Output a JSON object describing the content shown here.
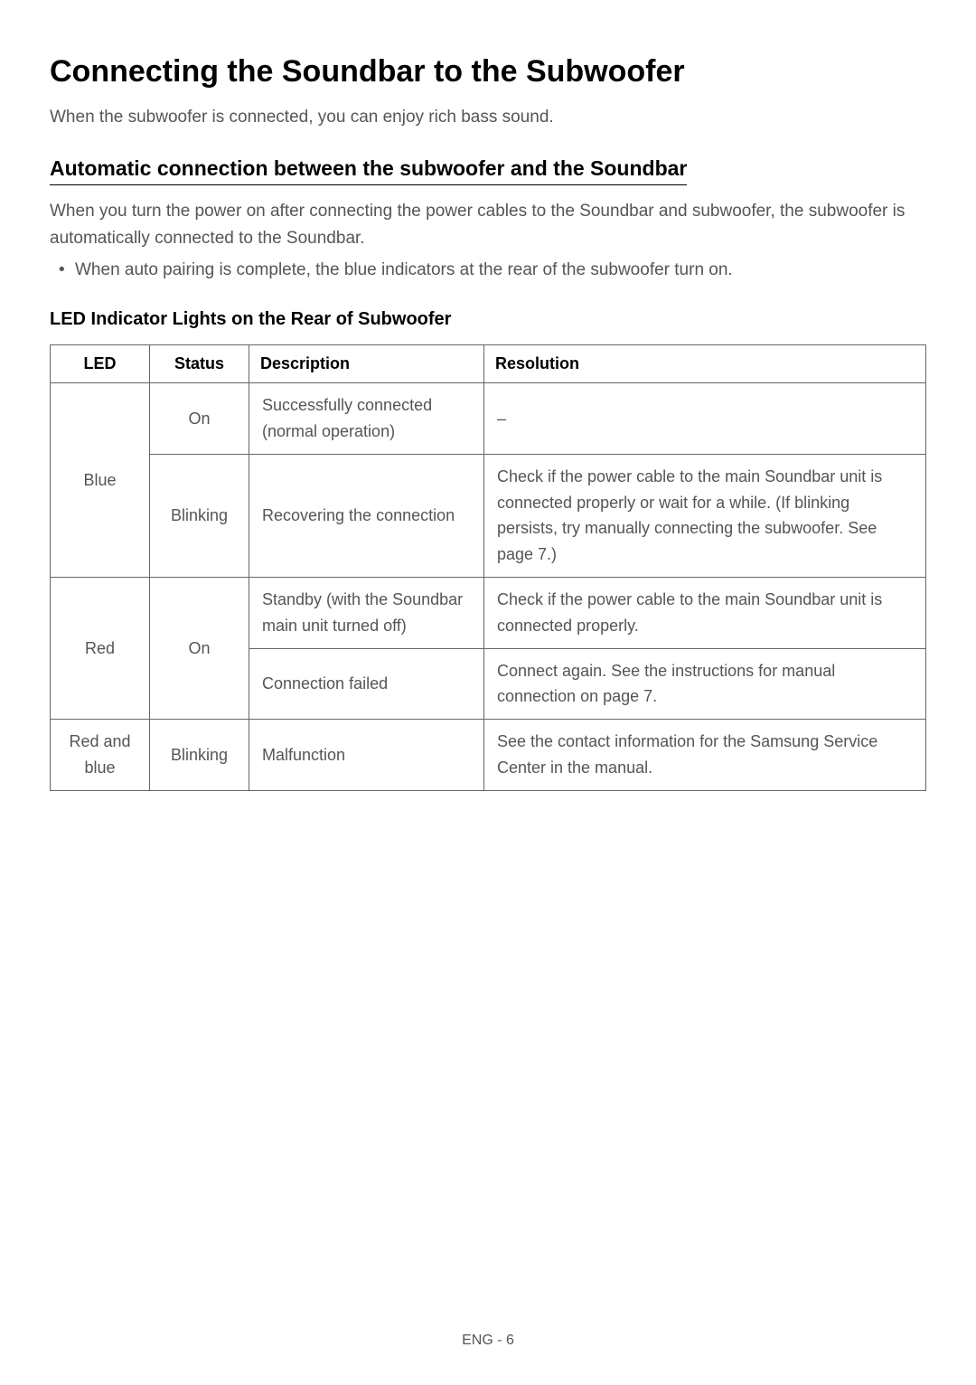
{
  "heading": "Connecting the Soundbar to the Subwoofer",
  "intro": "When the subwoofer is connected, you can enjoy rich bass sound.",
  "subheading": "Automatic connection between the subwoofer and the Soundbar",
  "body_paragraph": "When you turn the power on after connecting the power cables to the Soundbar and subwoofer, the subwoofer is automatically connected to the Soundbar.",
  "bullet_item": "When auto pairing is complete, the blue indicators at the rear of the subwoofer turn on.",
  "table_heading": "LED Indicator Lights on the Rear of Subwoofer",
  "table": {
    "headers": {
      "led": "LED",
      "status": "Status",
      "description": "Description",
      "resolution": "Resolution"
    },
    "rows": {
      "r1": {
        "led": "Blue",
        "status": "On",
        "description": "Successfully connected (normal operation)",
        "resolution": "–"
      },
      "r2": {
        "status": "Blinking",
        "description": "Recovering the connection",
        "resolution": "Check if the power cable to the main Soundbar unit is connected properly or wait for a while. (If blinking persists, try manually connecting the subwoofer. See page 7.)"
      },
      "r3": {
        "led": "Red",
        "status": "On",
        "description": "Standby (with the Soundbar main unit turned off)",
        "resolution": "Check if the power cable to the main Soundbar unit is connected properly."
      },
      "r4": {
        "description": "Connection failed",
        "resolution": "Connect again. See the instructions for manual connection on page 7."
      },
      "r5": {
        "led": "Red and blue",
        "status": "Blinking",
        "description": "Malfunction",
        "resolution": "See the contact information for the Samsung Service Center in the manual."
      }
    }
  },
  "footer": "ENG - 6"
}
